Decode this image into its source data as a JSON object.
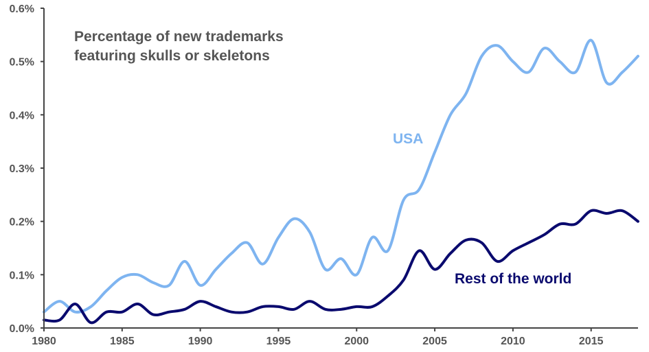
{
  "chart_data": {
    "type": "line",
    "title": [
      "Percentage of new trademarks",
      "featuring skulls or skeletons"
    ],
    "xlabel": "",
    "ylabel": "",
    "xlim": [
      1980,
      2018
    ],
    "ylim": [
      0,
      0.006
    ],
    "x_ticks": [
      1980,
      1985,
      1990,
      1995,
      2000,
      2005,
      2010,
      2015
    ],
    "x_tick_labels": [
      "1980",
      "1985",
      "1990",
      "1995",
      "2000",
      "2005",
      "2010",
      "2015"
    ],
    "y_ticks": [
      0,
      0.001,
      0.002,
      0.003,
      0.004,
      0.005,
      0.006
    ],
    "y_tick_labels": [
      "0.0%",
      "0.1%",
      "0.2%",
      "0.3%",
      "0.4%",
      "0.5%",
      "0.6%"
    ],
    "grid": false,
    "legend": "inline labels",
    "x": [
      1980,
      1981,
      1982,
      1983,
      1984,
      1985,
      1986,
      1987,
      1988,
      1989,
      1990,
      1991,
      1992,
      1993,
      1994,
      1995,
      1996,
      1997,
      1998,
      1999,
      2000,
      2001,
      2002,
      2003,
      2004,
      2005,
      2006,
      2007,
      2008,
      2009,
      2010,
      2011,
      2012,
      2013,
      2014,
      2015,
      2016,
      2017,
      2018
    ],
    "series": [
      {
        "name": "USA",
        "color": "#7eb4f0",
        "values": [
          0.0003,
          0.0005,
          0.0003,
          0.0004,
          0.0007,
          0.00095,
          0.001,
          0.00085,
          0.0008,
          0.00125,
          0.0008,
          0.0011,
          0.0014,
          0.0016,
          0.0012,
          0.0017,
          0.00205,
          0.0018,
          0.0011,
          0.0013,
          0.001,
          0.0017,
          0.00145,
          0.0024,
          0.0026,
          0.0033,
          0.004,
          0.0044,
          0.0051,
          0.0053,
          0.005,
          0.0048,
          0.00525,
          0.005,
          0.0048,
          0.0054,
          0.0046,
          0.0048,
          0.0051
        ]
      },
      {
        "name": "Rest of the world",
        "color": "#0a0a6e",
        "values": [
          0.00015,
          0.00015,
          0.00045,
          0.0001,
          0.0003,
          0.0003,
          0.00045,
          0.00025,
          0.0003,
          0.00035,
          0.0005,
          0.0004,
          0.0003,
          0.0003,
          0.0004,
          0.0004,
          0.00035,
          0.0005,
          0.00035,
          0.00035,
          0.0004,
          0.0004,
          0.0006,
          0.0009,
          0.00145,
          0.0011,
          0.0014,
          0.00165,
          0.0016,
          0.00125,
          0.00145,
          0.0016,
          0.00175,
          0.00195,
          0.00195,
          0.0022,
          0.00215,
          0.0022,
          0.002
        ]
      }
    ],
    "annotations": [
      {
        "text": "USA",
        "series": 0
      },
      {
        "text": "Rest of the world",
        "series": 1
      }
    ]
  }
}
